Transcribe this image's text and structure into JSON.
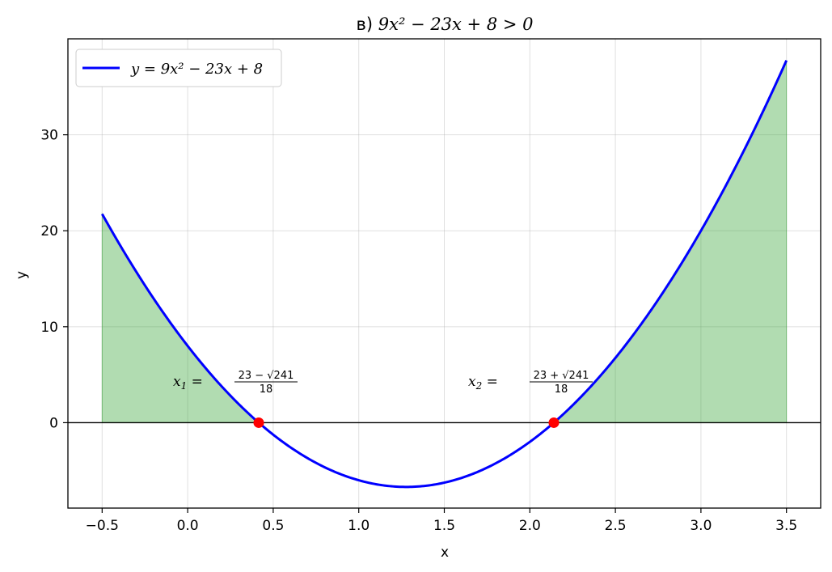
{
  "chart_data": {
    "type": "line",
    "title": {
      "prefix": "в) ",
      "math": "9x² − 23x + 8 > 0"
    },
    "xlabel": "x",
    "ylabel": "y",
    "xlim": [
      -0.7,
      3.7
    ],
    "ylim": [
      -8.9,
      40
    ],
    "x_ticks": [
      -0.5,
      0.0,
      0.5,
      1.0,
      1.5,
      2.0,
      2.5,
      3.0,
      3.5
    ],
    "x_tick_labels": [
      "−0.5",
      "0.0",
      "0.5",
      "1.0",
      "1.5",
      "2.0",
      "2.5",
      "3.0",
      "3.5"
    ],
    "y_ticks": [
      0,
      10,
      20,
      30
    ],
    "y_tick_labels": [
      "0",
      "10",
      "20",
      "30"
    ],
    "grid": true,
    "series": [
      {
        "name": "y = 9x² − 23x + 8",
        "color": "#0000ff",
        "coefficients": {
          "a": 9,
          "b": -23,
          "c": 8
        },
        "x_range": [
          -0.5,
          3.5
        ]
      }
    ],
    "fill": {
      "color": "#2ca02c",
      "opacity": 0.37,
      "condition": "y > 0"
    },
    "roots": [
      {
        "x": 0.4153,
        "label_var": "x",
        "label_sub": "1",
        "label_num": "23 − √241",
        "label_den": "18"
      },
      {
        "x": 2.1403,
        "label_var": "x",
        "label_sub": "2",
        "label_num": "23 + √241",
        "label_den": "18"
      }
    ],
    "root_marker_color": "#ff0000",
    "legend": {
      "position": "top-left",
      "label": "y = 9x² − 23x + 8"
    }
  }
}
